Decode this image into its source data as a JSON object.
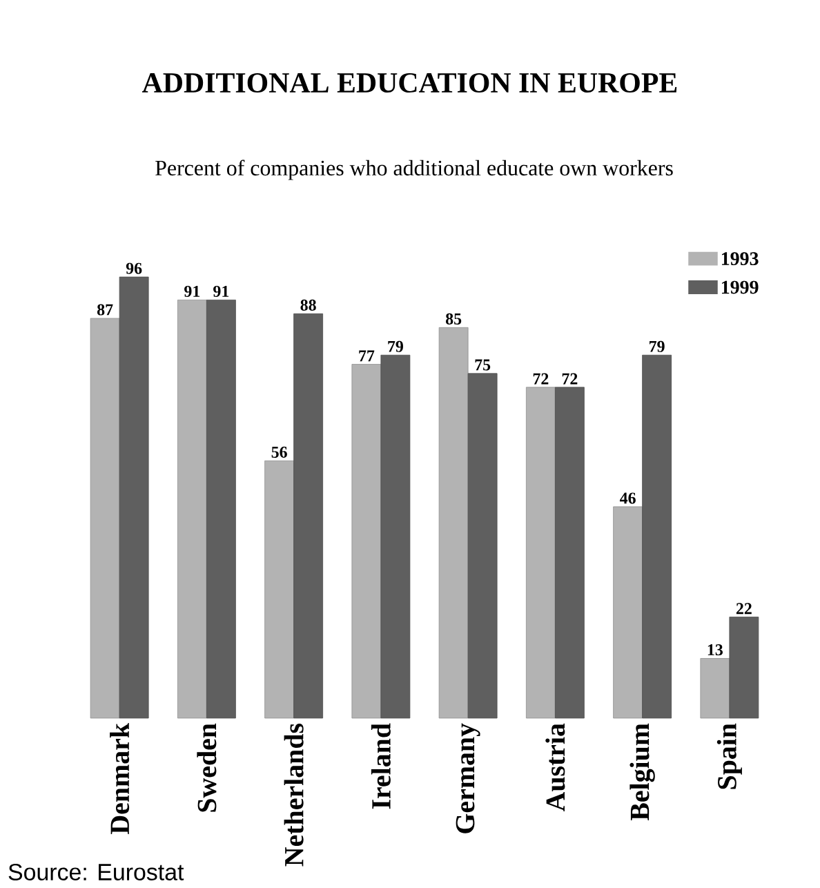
{
  "chart_data": {
    "type": "bar",
    "title": "ADDITIONAL EDUCATION IN EUROPE",
    "subtitle": "Percent of companies who additional educate own workers",
    "categories": [
      "Denmark",
      "Sweden",
      "Netherlands",
      "Ireland",
      "Germany",
      "Austria",
      "Belgium",
      "Spain"
    ],
    "series": [
      {
        "name": "1993",
        "color": "#b3b3b3",
        "values": [
          87,
          91,
          56,
          77,
          85,
          72,
          46,
          13
        ]
      },
      {
        "name": "1999",
        "color": "#5f5f5f",
        "values": [
          96,
          91,
          88,
          79,
          75,
          72,
          79,
          22
        ]
      }
    ],
    "data_labels": true,
    "legend": "top right",
    "annotations": [
      "Source: Eurostat"
    ]
  }
}
